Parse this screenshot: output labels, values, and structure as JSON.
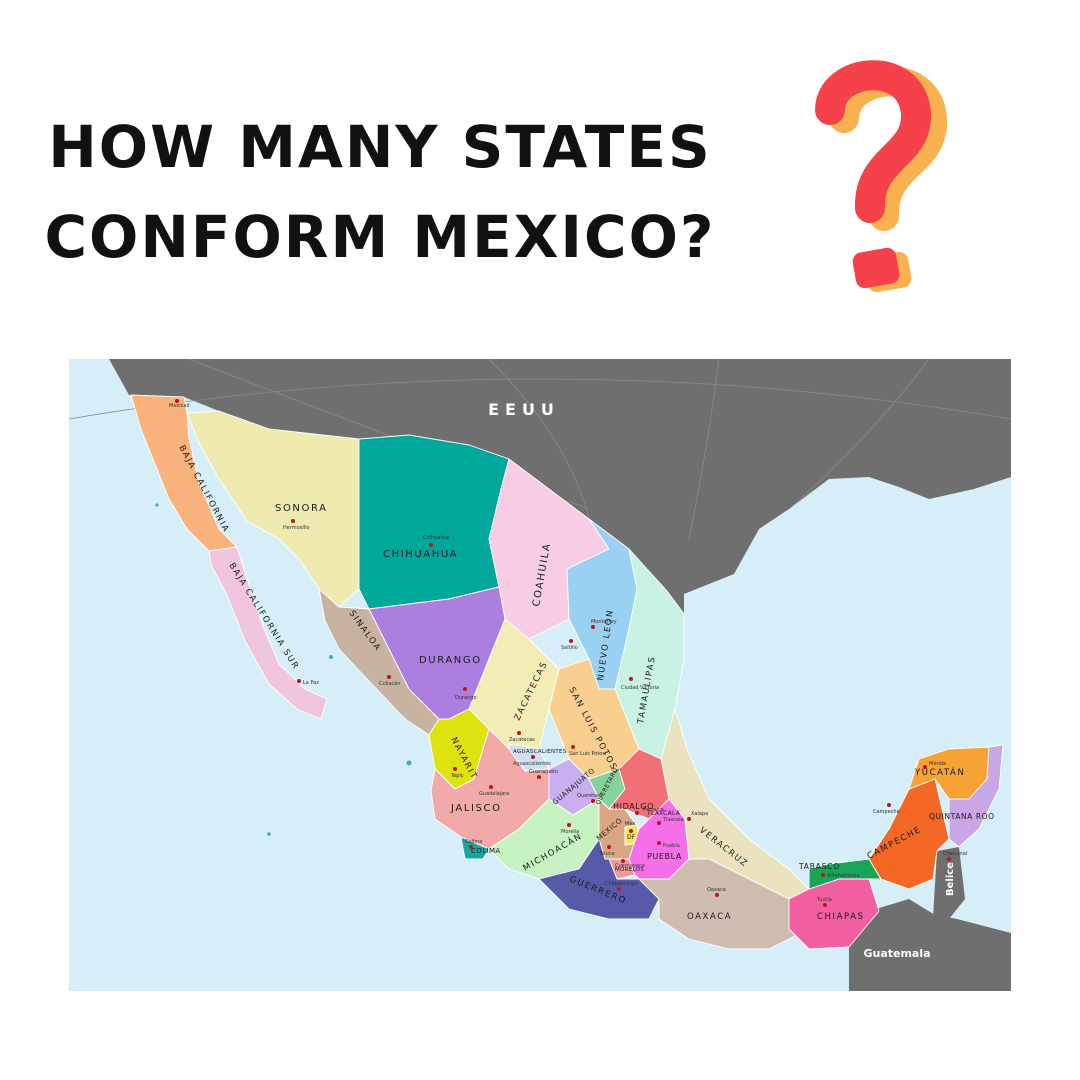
{
  "headline": {
    "line1": "HOW MANY STATES",
    "line2": "CONFORM MEXICO?"
  },
  "question_mark": {
    "icon": "question-mark-icon",
    "colors": {
      "front": "#f5424a",
      "back": "#f9b04f"
    }
  },
  "map": {
    "colors": {
      "ocean": "#d6eef8",
      "neighbor_land": "#6f6f6f",
      "graticule": "#8a8a8a",
      "capital_dot": "#c0141b"
    },
    "countries": {
      "north": "EEUU",
      "belize": "Belice",
      "guatemala": "Guatemala"
    },
    "states": [
      {
        "id": "baja-california",
        "name": "BAJA CALIFORNIA",
        "capital": "Mexicali",
        "color": "#f9b27b"
      },
      {
        "id": "baja-california-sur",
        "name": "BAJA CALIFORNIA SUR",
        "capital": "La Paz",
        "color": "#f0c6df"
      },
      {
        "id": "sonora",
        "name": "SONORA",
        "capital": "Hermosillo",
        "color": "#eeeab0"
      },
      {
        "id": "chihuahua",
        "name": "CHIHUAHUA",
        "capital": "Chihuahua",
        "color": "#00a79b"
      },
      {
        "id": "coahuila",
        "name": "COAHUILA",
        "capital": "Saltillo",
        "color": "#f7cce5"
      },
      {
        "id": "nuevo-leon",
        "name": "NUEVO LEON",
        "capital": "Monterrey",
        "color": "#9ad1f2"
      },
      {
        "id": "tamaulipas",
        "name": "TAMAULIPAS",
        "capital": "Ciudad Victoria",
        "color": "#c8f2e3"
      },
      {
        "id": "sinaloa",
        "name": "SINALOA",
        "capital": "Culiacán",
        "color": "#c7b3a2"
      },
      {
        "id": "durango",
        "name": "DURANGO",
        "capital": "Durango",
        "color": "#ab7ee0"
      },
      {
        "id": "zacatecas",
        "name": "ZACATECAS",
        "capital": "Zacatecas",
        "color": "#f2ecb5"
      },
      {
        "id": "san-luis-potosi",
        "name": "SAN LUIS POTOSÍ",
        "capital": "San Luis Potosí",
        "color": "#f9cf8f"
      },
      {
        "id": "nayarit",
        "name": "NAYARIT",
        "capital": "Tepic",
        "color": "#dee30f"
      },
      {
        "id": "aguascalientes",
        "name": "AGUASCALIENTES",
        "capital": "Aguascalientes",
        "color": "#cfe0f2"
      },
      {
        "id": "jalisco",
        "name": "JALISCO",
        "capital": "Guadalajara",
        "color": "#f2aaa8"
      },
      {
        "id": "guanajuato",
        "name": "GUANAJUATO",
        "capital": "Guanajuato",
        "color": "#c9aef0"
      },
      {
        "id": "queretaro",
        "name": "QUERETARO",
        "capital": "Querétaro",
        "color": "#86d39a"
      },
      {
        "id": "hidalgo",
        "name": "HIDALGO",
        "capital": "Pachuca",
        "color": "#f26f77"
      },
      {
        "id": "colima",
        "name": "COLIMA",
        "capital": "Colima",
        "color": "#16a69e"
      },
      {
        "id": "michoacan",
        "name": "MICHOACÁN",
        "capital": "Morelia",
        "color": "#c7f2c2"
      },
      {
        "id": "mexico",
        "name": "MEXICO",
        "capital": "Toluca",
        "color": "#d9a684"
      },
      {
        "id": "df",
        "name": "DF",
        "capital": "Mex",
        "color": "#f5e85a"
      },
      {
        "id": "morelos",
        "name": "MORELOS",
        "capital": "Cuernavaca",
        "color": "#f29a9a"
      },
      {
        "id": "tlaxcala",
        "name": "TLAXCALA",
        "capital": "Tlaxcala",
        "color": "#5ec25e"
      },
      {
        "id": "puebla",
        "name": "PUEBLA",
        "capital": "Puebla",
        "color": "#f570e8"
      },
      {
        "id": "veracruz",
        "name": "VERACRUZ",
        "capital": "Xalapa",
        "color": "#ebe3bf"
      },
      {
        "id": "guerrero",
        "name": "GUERRERO",
        "capital": "Chilpancingo",
        "color": "#565aa8"
      },
      {
        "id": "oaxaca",
        "name": "OAXACA",
        "capital": "Oaxaca",
        "color": "#cfbdb2"
      },
      {
        "id": "chiapas",
        "name": "CHIAPAS",
        "capital": "Tuxtla",
        "color": "#f25fa1"
      },
      {
        "id": "tabasco",
        "name": "TABASCO",
        "capital": "Villahermosa",
        "color": "#18a558"
      },
      {
        "id": "campeche",
        "name": "CAMPECHE",
        "capital": "Campeche",
        "color": "#f26824"
      },
      {
        "id": "yucatan",
        "name": "YUCATÁN",
        "capital": "Mérida",
        "color": "#f7a234"
      },
      {
        "id": "quintana-roo",
        "name": "QUINTANA ROO",
        "capital": "Chetumal",
        "color": "#c9a6e6"
      }
    ]
  }
}
